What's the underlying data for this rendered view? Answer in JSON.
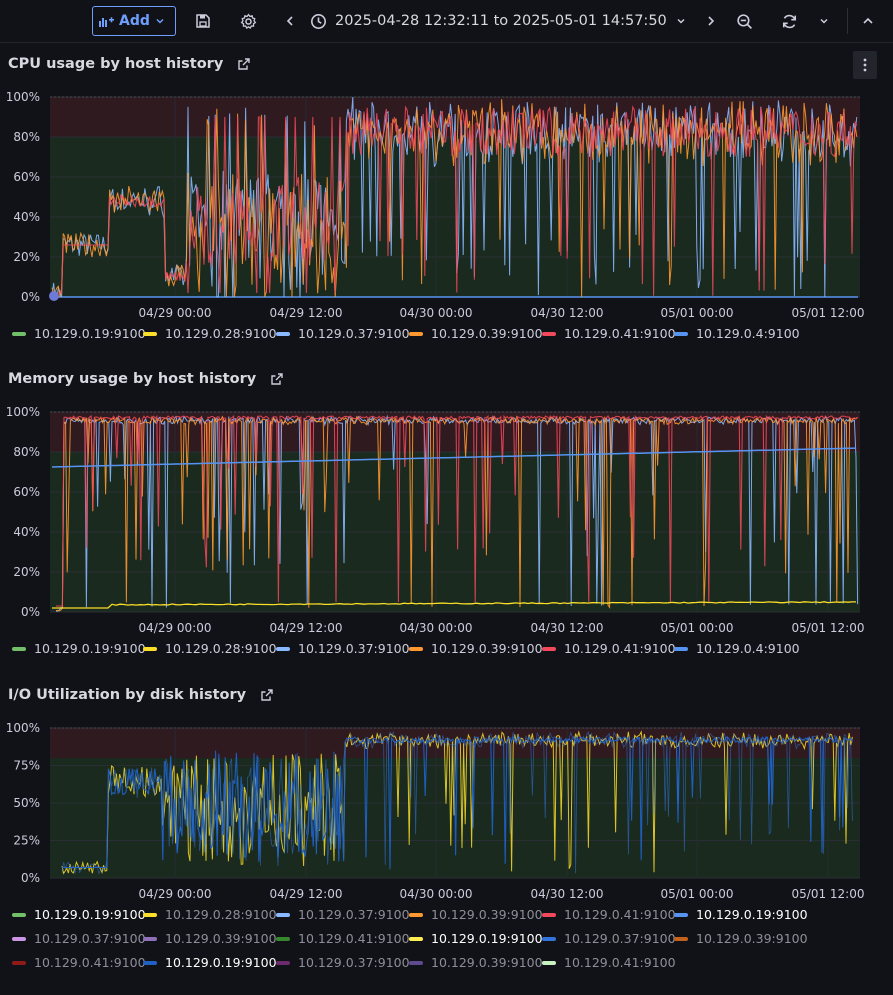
{
  "toolbar": {
    "add_label": "Add",
    "time_range": "2025-04-28 12:32:11 to 2025-05-01 14:57:50",
    "icons": [
      "add-panel-icon",
      "save-icon",
      "settings-icon",
      "chevron-left-icon",
      "clock-icon",
      "chevron-down-icon",
      "chevron-right-icon",
      "zoom-out-icon",
      "refresh-icon",
      "chevron-down-icon",
      "chevron-up-icon"
    ]
  },
  "colors": {
    "green": "#73bf69",
    "yellow": "#fade2a",
    "lightblue": "#8ab8ff",
    "orange": "#ff9830",
    "red": "#f2495c",
    "blue": "#5794f2",
    "threshold_red": "#2e1a1f",
    "threshold_green": "#1a2a1e"
  },
  "x_ticks": [
    "04/29 00:00",
    "04/29 12:00",
    "04/30 00:00",
    "04/30 12:00",
    "05/01 00:00",
    "05/01 12:00"
  ],
  "panels": [
    {
      "title": "CPU usage by host history",
      "y_ticks": [
        "100%",
        "80%",
        "60%",
        "40%",
        "20%",
        "0%"
      ],
      "legend": [
        {
          "label": "10.129.0.19:9100",
          "color": "#73bf69"
        },
        {
          "label": "10.129.0.28:9100",
          "color": "#fade2a"
        },
        {
          "label": "10.129.0.37:9100",
          "color": "#8ab8ff"
        },
        {
          "label": "10.129.0.39:9100",
          "color": "#ff9830"
        },
        {
          "label": "10.129.0.41:9100",
          "color": "#f2495c"
        },
        {
          "label": "10.129.0.4:9100",
          "color": "#5794f2"
        }
      ]
    },
    {
      "title": "Memory usage by host history",
      "y_ticks": [
        "100%",
        "80%",
        "60%",
        "40%",
        "20%",
        "0%"
      ],
      "legend": [
        {
          "label": "10.129.0.19:9100",
          "color": "#73bf69"
        },
        {
          "label": "10.129.0.28:9100",
          "color": "#fade2a"
        },
        {
          "label": "10.129.0.37:9100",
          "color": "#8ab8ff"
        },
        {
          "label": "10.129.0.39:9100",
          "color": "#ff9830"
        },
        {
          "label": "10.129.0.41:9100",
          "color": "#f2495c"
        },
        {
          "label": "10.129.0.4:9100",
          "color": "#5794f2"
        }
      ]
    },
    {
      "title": "I/O Utilization by disk history",
      "y_ticks": [
        "100%",
        "75%",
        "50%",
        "25%",
        "0%"
      ],
      "legend": [
        {
          "label": "10.129.0.19:9100",
          "color": "#73bf69",
          "state": "bright"
        },
        {
          "label": "10.129.0.28:9100",
          "color": "#fade2a",
          "state": "dim"
        },
        {
          "label": "10.129.0.37:9100",
          "color": "#8ab8ff",
          "state": "dim"
        },
        {
          "label": "10.129.0.39:9100",
          "color": "#ff9830",
          "state": "dim"
        },
        {
          "label": "10.129.0.41:9100",
          "color": "#f2495c",
          "state": "dim"
        },
        {
          "label": "10.129.0.19:9100",
          "color": "#5794f2",
          "state": "bright"
        },
        {
          "label": "10.129.0.37:9100",
          "color": "#ca95e5",
          "state": "dim"
        },
        {
          "label": "10.129.0.39:9100",
          "color": "#8f6fb8",
          "state": "dim"
        },
        {
          "label": "10.129.0.41:9100",
          "color": "#37872d",
          "state": "dim"
        },
        {
          "label": "10.129.0.19:9100",
          "color": "#ffee52",
          "state": "bright"
        },
        {
          "label": "10.129.0.37:9100",
          "color": "#3274d9",
          "state": "dim"
        },
        {
          "label": "10.129.0.39:9100",
          "color": "#c4621c",
          "state": "dim"
        },
        {
          "label": "10.129.0.41:9100",
          "color": "#8f1a1a",
          "state": "dim"
        },
        {
          "label": "10.129.0.19:9100",
          "color": "#1f60c4",
          "state": "bright"
        },
        {
          "label": "10.129.0.37:9100",
          "color": "#6b2a6b",
          "state": "dim"
        },
        {
          "label": "10.129.0.39:9100",
          "color": "#5e4a8f",
          "state": "dim"
        },
        {
          "label": "10.129.0.41:9100",
          "color": "#c8f2c2",
          "state": "dim"
        }
      ]
    }
  ]
}
